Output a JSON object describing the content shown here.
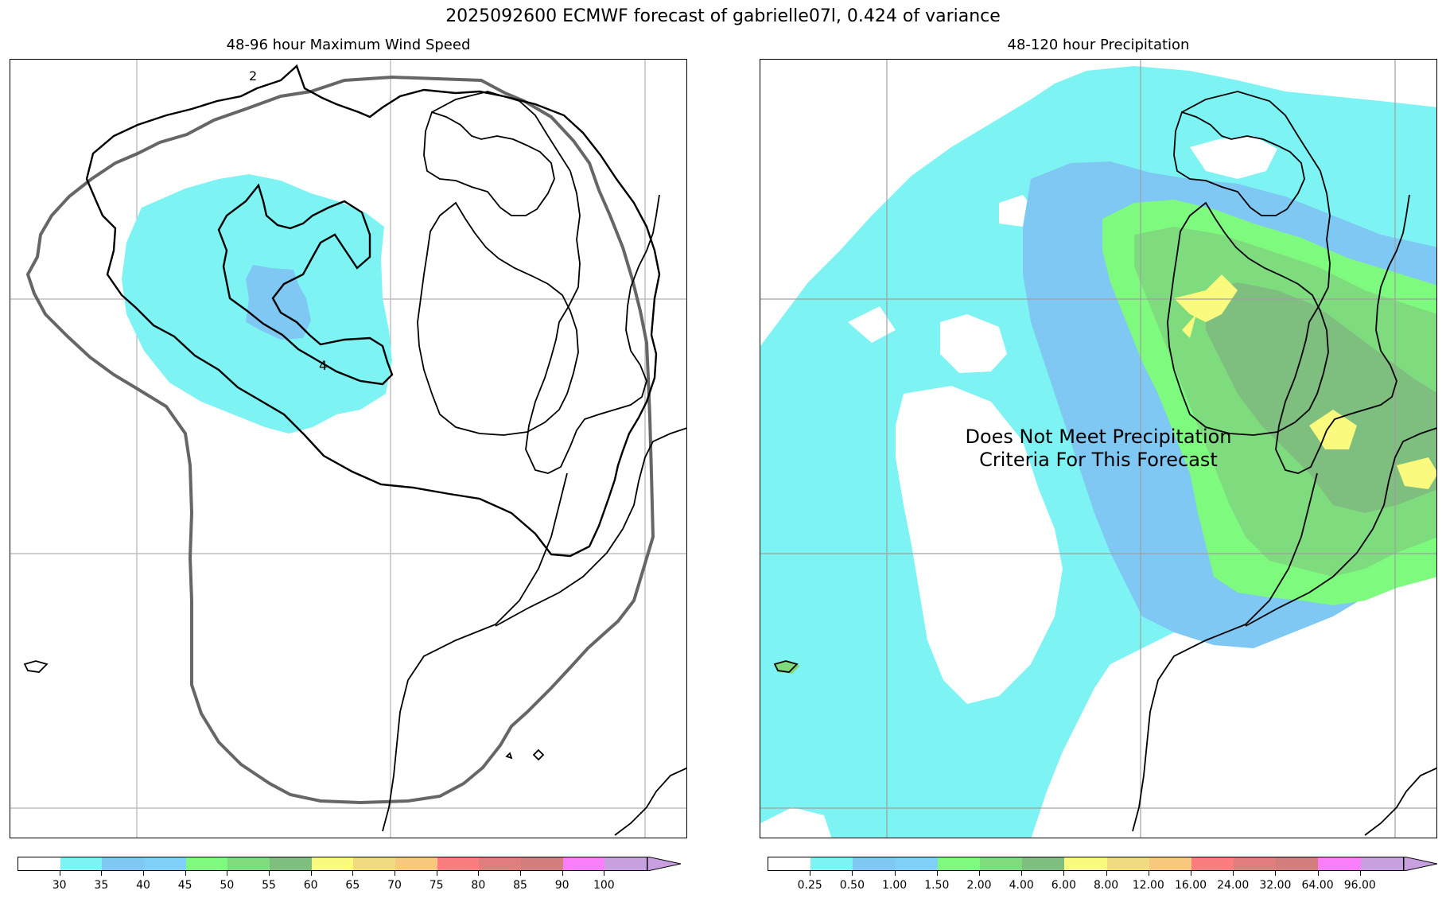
{
  "figure": {
    "suptitle": "2025092600 ECMWF forecast of gabrielle07l, 0.424 of variance"
  },
  "left_panel": {
    "title": "48-96 hour Maximum Wind Speed",
    "contour_labels": [
      "2",
      "4"
    ],
    "colorbar": {
      "ticks": [
        "30",
        "35",
        "40",
        "45",
        "50",
        "55",
        "60",
        "65",
        "70",
        "75",
        "80",
        "85",
        "90",
        "100"
      ],
      "colors": [
        "#ffffff",
        "#7ef3f3",
        "#7ec8f3",
        "#7ecff9",
        "#7efa7e",
        "#7edc7e",
        "#7ebe7e",
        "#fafa7e",
        "#f0dc7e",
        "#f8c87e",
        "#fa7e7e",
        "#e07e7e",
        "#d27e7e",
        "#fa7efa",
        "#c8a0e0"
      ]
    }
  },
  "right_panel": {
    "title": "48-120 hour Precipitation",
    "overlay_line1": "Does Not Meet Precipitation",
    "overlay_line2": "Criteria For This Forecast",
    "colorbar": {
      "ticks": [
        "0.25",
        "0.50",
        "1.00",
        "1.50",
        "2.00",
        "4.00",
        "6.00",
        "8.00",
        "12.00",
        "16.00",
        "24.00",
        "32.00",
        "64.00",
        "96.00"
      ],
      "colors": [
        "#ffffff",
        "#7ef3f3",
        "#7ec8f3",
        "#7ecff9",
        "#7efa7e",
        "#7edc7e",
        "#7ebe7e",
        "#fafa7e",
        "#f0dc7e",
        "#f8c87e",
        "#fa7e7e",
        "#e07e7e",
        "#d27e7e",
        "#fa7efa",
        "#c8a0e0"
      ]
    }
  }
}
